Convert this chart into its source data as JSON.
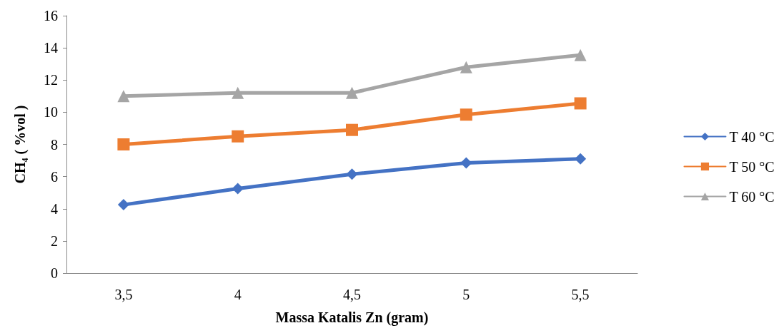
{
  "chart_data": {
    "type": "line",
    "xlabel": "Massa Katalis Zn (gram)",
    "ylabel": "CH₄ ( %vol )",
    "categories": [
      "3,5",
      "4",
      "4,5",
      "5",
      "5,5"
    ],
    "ylim": [
      0,
      16
    ],
    "yticks": [
      0,
      2,
      4,
      6,
      8,
      10,
      12,
      14,
      16
    ],
    "grid": false,
    "legend": "right",
    "line_style": "solid",
    "series": [
      {
        "name": "T 40 °C",
        "color": "#4472c4",
        "marker": "diamond",
        "values": [
          4.25,
          5.25,
          6.15,
          6.85,
          7.1
        ]
      },
      {
        "name": "T 50 °C",
        "color": "#ed7d31",
        "marker": "square",
        "values": [
          8,
          8.5,
          8.9,
          9.85,
          10.55
        ]
      },
      {
        "name": "T 60 °C",
        "color": "#a5a5a5",
        "marker": "triangle",
        "values": [
          11,
          11.2,
          11.2,
          12.8,
          13.55
        ]
      }
    ]
  }
}
